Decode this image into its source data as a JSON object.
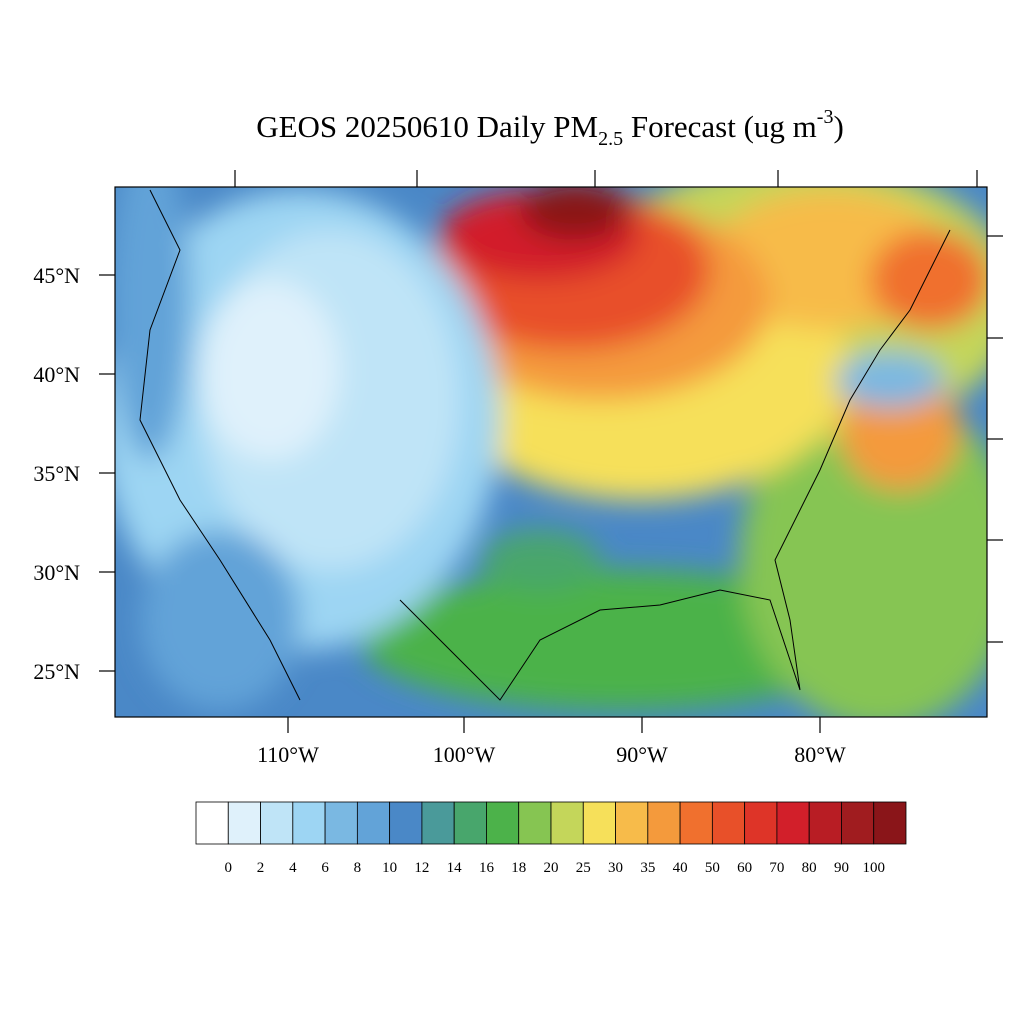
{
  "title": {
    "main": "GEOS 20250610 Daily PM",
    "sub": "2.5",
    "rest": " Forecast (ug m",
    "sup": "-3",
    "end": ")"
  },
  "map": {
    "lat_labels": [
      "45°N",
      "40°N",
      "35°N",
      "30°N",
      "25°N"
    ],
    "lon_labels": [
      "110°W",
      "100°W",
      "90°W",
      "80°W"
    ]
  },
  "colorbar": {
    "levels": [
      0,
      2,
      4,
      6,
      8,
      10,
      12,
      14,
      16,
      18,
      20,
      25,
      30,
      35,
      40,
      50,
      60,
      70,
      80,
      90,
      100
    ],
    "colors": [
      "#ffffff",
      "#dff1fb",
      "#bfe4f7",
      "#9dd5f3",
      "#7ab8e2",
      "#62a3d8",
      "#4a88c7",
      "#4a9a9a",
      "#48a66c",
      "#4cb24a",
      "#86c552",
      "#c4d65a",
      "#f6e05a",
      "#f7bb4a",
      "#f49a3c",
      "#f0702e",
      "#e85029",
      "#de3428",
      "#d21f2a",
      "#b81d24",
      "#a01c1f",
      "#8a1519"
    ]
  }
}
